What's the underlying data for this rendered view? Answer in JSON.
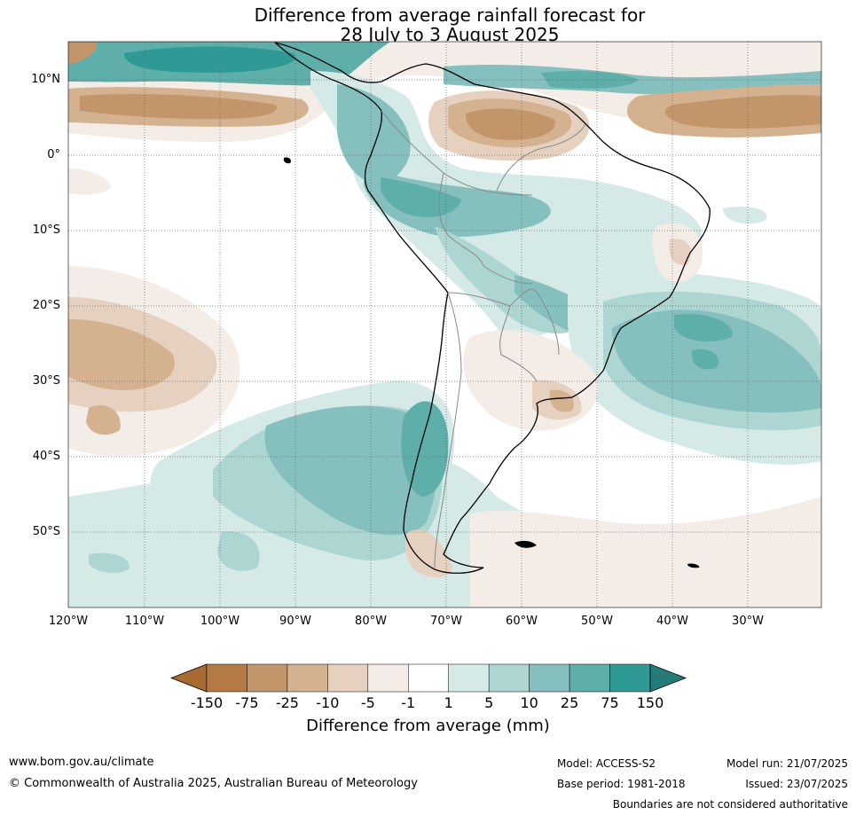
{
  "title_line1": "Difference from average rainfall forecast for",
  "title_line2": "28 July to 3 August 2025",
  "lat_labels": [
    "10°N",
    "0°",
    "10°S",
    "20°S",
    "30°S",
    "40°S",
    "50°S"
  ],
  "lon_labels": [
    "120°W",
    "110°W",
    "100°W",
    "90°W",
    "80°W",
    "70°W",
    "60°W",
    "50°W",
    "40°W",
    "30°W"
  ],
  "colorbar": {
    "ticks": [
      "-150",
      "-75",
      "-25",
      "-10",
      "-5",
      "-1",
      "1",
      "5",
      "10",
      "25",
      "75",
      "150"
    ],
    "colors": [
      "#a66a32",
      "#b37a43",
      "#c3956a",
      "#d4b28f",
      "#e6d0c0",
      "#f4ece6",
      "#ffffff",
      "#d5e9e7",
      "#add6d3",
      "#86c0be",
      "#5eaeaa",
      "#2f9996",
      "#267b79"
    ],
    "label": "Difference from average (mm)"
  },
  "footer": {
    "website": "www.bom.gov.au/climate",
    "copyright": "© Commonwealth of Australia 2025, Australian Bureau of Meteorology",
    "model": "Model: ACCESS-S2",
    "base_period": "Base period: 1981-2018",
    "model_run": "Model run: 21/07/2025",
    "issued": "Issued: 23/07/2025",
    "disclaimer": "Boundaries are not considered authoritative"
  }
}
